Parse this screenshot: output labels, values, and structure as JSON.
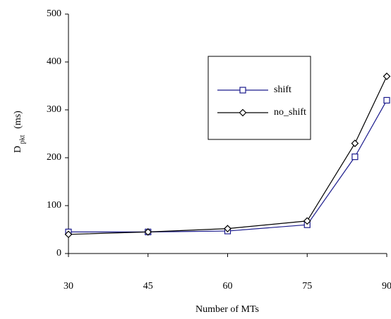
{
  "chart_data": {
    "type": "line",
    "x_label": "Number of MTs",
    "y_label": {
      "main": "D",
      "sub": "pkt",
      "unit": "(ms)"
    },
    "x": [
      30,
      45,
      60,
      75,
      84,
      90
    ],
    "series": [
      {
        "name": "shift",
        "color": "#1a1a8c",
        "marker": "square",
        "values": [
          45,
          45,
          47,
          60,
          202,
          320
        ]
      },
      {
        "name": "no_shift",
        "color": "#000000",
        "marker": "diamond",
        "values": [
          40,
          45,
          52,
          68,
          230,
          370
        ]
      }
    ],
    "xlim": [
      30,
      90
    ],
    "xticks": [
      30,
      45,
      60,
      75,
      90
    ],
    "ylim": [
      0,
      500
    ],
    "yticks": [
      0,
      100,
      200,
      300,
      400,
      500
    ]
  }
}
